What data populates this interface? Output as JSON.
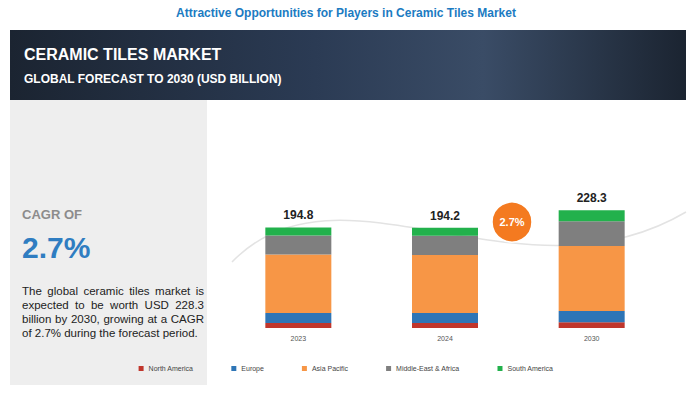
{
  "chart_data": {
    "type": "bar",
    "title": "Attractive Opportunities for Players in Ceramic Tiles Market",
    "subtitle": "CERAMIC TILES MARKET",
    "annotations": {
      "forecast": "GLOBAL FORECAST TO 2030 (USD BILLION)",
      "cagr_label": "CAGR OF",
      "cagr": "2.7%",
      "description": "The global ceramic tiles market is expected to be worth USD 228.3 billion by 2030, growing at a CAGR of 2.7% during the forecast period."
    },
    "categories": [
      "2023",
      "2024",
      "2030"
    ],
    "series": [
      {
        "name": "North America",
        "color": "#c0362c",
        "values": [
          9.8,
          9.7,
          11.0
        ]
      },
      {
        "name": "Europe",
        "color": "#2e75b6",
        "values": [
          19.5,
          19.2,
          22.0
        ]
      },
      {
        "name": "Asia Pacific",
        "color": "#f79646",
        "values": [
          113.0,
          112.8,
          126.0
        ]
      },
      {
        "name": "Middle-East & Africa",
        "color": "#7f7f7f",
        "values": [
          37.0,
          37.0,
          48.0
        ]
      },
      {
        "name": "South America",
        "color": "#22b14c",
        "values": [
          15.5,
          15.5,
          21.3
        ]
      }
    ],
    "totals": [
      194.8,
      194.2,
      228.3
    ],
    "stacked": true,
    "ylim": [
      0,
      250
    ],
    "yticks": [
      0,
      250
    ],
    "tick_labels": "x",
    "grid": false,
    "legend": "bottom"
  }
}
